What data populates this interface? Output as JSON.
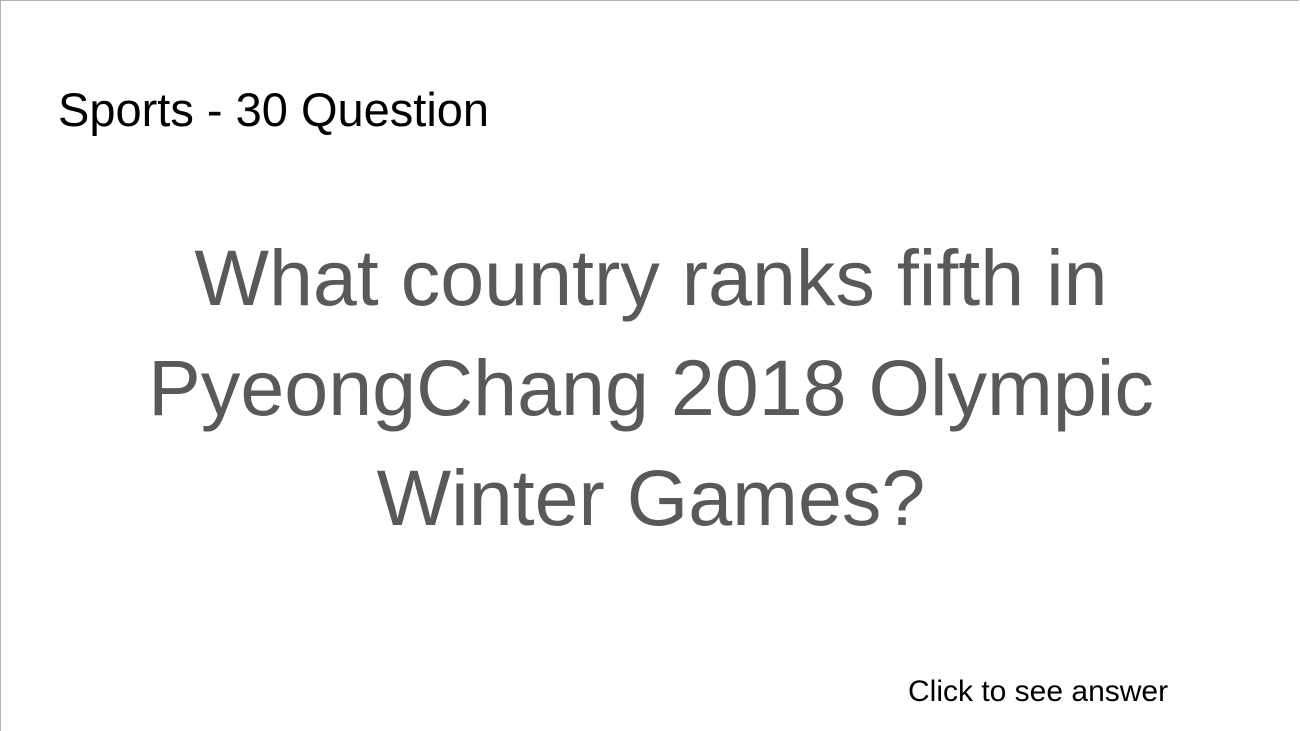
{
  "slide": {
    "title": "Sports - 30 Question",
    "question_lines": [
      "What country ranks fifth in",
      "PyeongChang 2018 Olympic",
      "Winter Games?"
    ],
    "answer_link_label": "Click to see answer"
  },
  "colors": {
    "background": "#ffffff",
    "title_text": "#000000",
    "question_text": "#595959",
    "border": "#b0b0b0"
  }
}
